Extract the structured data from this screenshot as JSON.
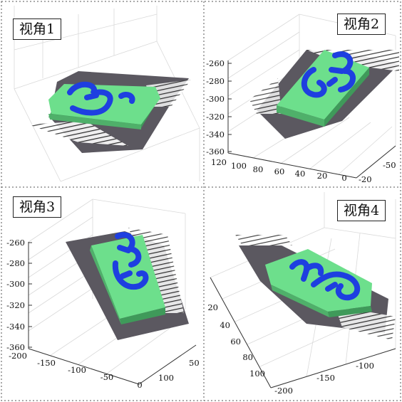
{
  "colors": {
    "background": "#ffffff",
    "block": "#6ddf8c",
    "block_side": "#4fb06a",
    "numeral": "#1e3fe0",
    "shadow": "#5b5860",
    "grid": "#d9d9d9",
    "divider": "#555555"
  },
  "panels": [
    {
      "label": "视角1",
      "axes": []
    },
    {
      "label": "视角2",
      "axes": [
        {
          "name": "z",
          "ticks": [
            "-260",
            "-280",
            "-300",
            "-320",
            "-340",
            "-360"
          ]
        },
        {
          "name": "x",
          "ticks": [
            "120",
            "100",
            "80",
            "60",
            "40",
            "20",
            "0"
          ]
        },
        {
          "name": "y",
          "ticks": [
            "-50",
            "-20"
          ]
        }
      ]
    },
    {
      "label": "视角3",
      "axes": [
        {
          "name": "z",
          "ticks": [
            "-260",
            "-280",
            "-300",
            "-320",
            "-340",
            "-360"
          ]
        },
        {
          "name": "x",
          "ticks": [
            "-200",
            "-150",
            "-100",
            "-50",
            "0"
          ]
        },
        {
          "name": "y",
          "ticks": [
            "50",
            "100"
          ]
        }
      ]
    },
    {
      "label": "视角4",
      "axes": [
        {
          "name": "y",
          "ticks": [
            "20",
            "40",
            "60",
            "80",
            "100"
          ]
        },
        {
          "name": "x",
          "ticks": [
            "-200",
            "-150",
            "-100"
          ]
        }
      ]
    }
  ]
}
